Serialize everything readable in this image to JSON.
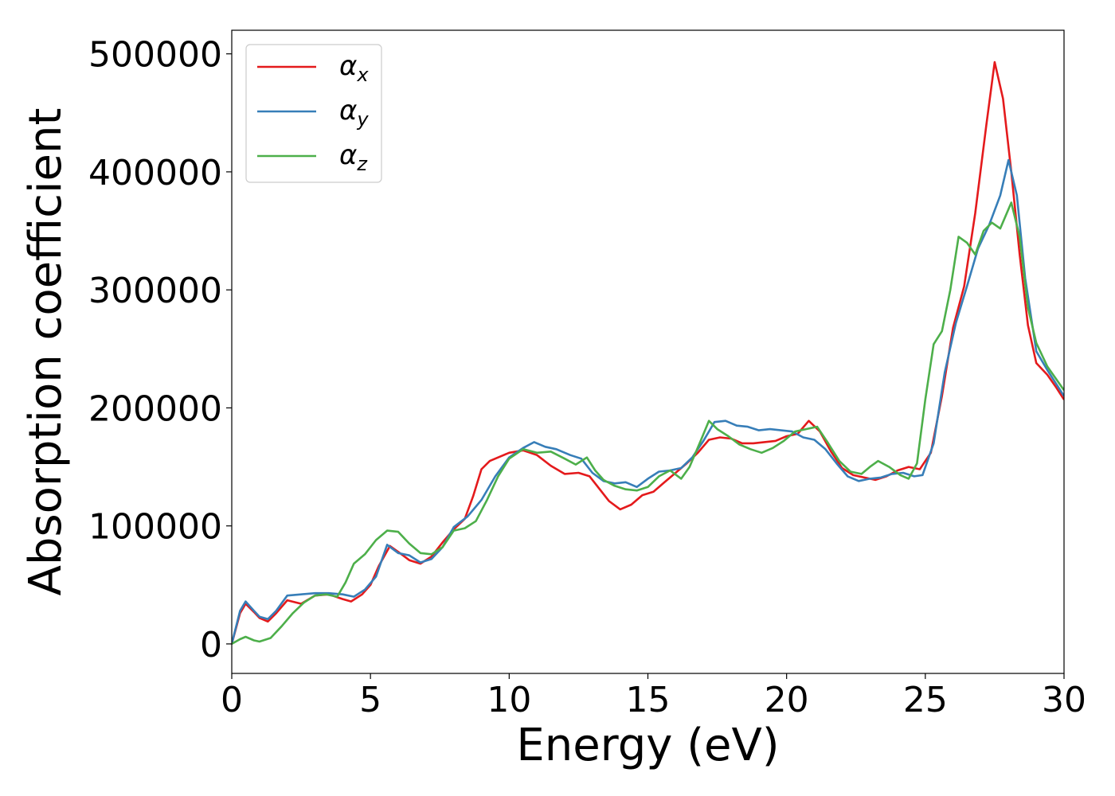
{
  "chart_data": {
    "type": "line",
    "xlabel": "Energy (eV)",
    "ylabel": "Absorption coefficient",
    "xlim": [
      0,
      30
    ],
    "ylim": [
      -25000,
      520000
    ],
    "xticks": [
      0,
      5,
      10,
      15,
      20,
      25,
      30
    ],
    "yticks": [
      0,
      100000,
      200000,
      300000,
      400000,
      500000
    ],
    "grid": false,
    "legend_position": "top-left",
    "series": [
      {
        "name": "α",
        "subscript": "x",
        "color": "#e41a1c",
        "points": [
          [
            0,
            0
          ],
          [
            0.3,
            26000
          ],
          [
            0.5,
            34000
          ],
          [
            0.8,
            27000
          ],
          [
            1.0,
            22000
          ],
          [
            1.3,
            19000
          ],
          [
            1.6,
            26000
          ],
          [
            2.0,
            37000
          ],
          [
            2.5,
            34000
          ],
          [
            3.0,
            41000
          ],
          [
            3.5,
            42000
          ],
          [
            4.0,
            38000
          ],
          [
            4.3,
            36000
          ],
          [
            4.7,
            42000
          ],
          [
            5.0,
            50000
          ],
          [
            5.3,
            66000
          ],
          [
            5.7,
            83000
          ],
          [
            6.0,
            78000
          ],
          [
            6.4,
            71000
          ],
          [
            6.8,
            68000
          ],
          [
            7.2,
            74000
          ],
          [
            7.6,
            86000
          ],
          [
            8.0,
            97000
          ],
          [
            8.4,
            106000
          ],
          [
            8.7,
            125000
          ],
          [
            9.0,
            148000
          ],
          [
            9.3,
            155000
          ],
          [
            9.7,
            159000
          ],
          [
            10.0,
            162000
          ],
          [
            10.5,
            164000
          ],
          [
            11.0,
            160000
          ],
          [
            11.5,
            151000
          ],
          [
            12.0,
            144000
          ],
          [
            12.5,
            145000
          ],
          [
            12.9,
            142000
          ],
          [
            13.2,
            133000
          ],
          [
            13.6,
            121000
          ],
          [
            14.0,
            114000
          ],
          [
            14.4,
            118000
          ],
          [
            14.8,
            126000
          ],
          [
            15.2,
            129000
          ],
          [
            15.6,
            137000
          ],
          [
            16.0,
            145000
          ],
          [
            16.4,
            153000
          ],
          [
            16.8,
            162000
          ],
          [
            17.2,
            173000
          ],
          [
            17.6,
            175000
          ],
          [
            18.0,
            174000
          ],
          [
            18.4,
            170000
          ],
          [
            18.8,
            170000
          ],
          [
            19.2,
            171000
          ],
          [
            19.6,
            172000
          ],
          [
            20.0,
            176000
          ],
          [
            20.4,
            178000
          ],
          [
            20.8,
            189000
          ],
          [
            21.2,
            180000
          ],
          [
            21.6,
            163000
          ],
          [
            22.0,
            149000
          ],
          [
            22.4,
            143000
          ],
          [
            22.8,
            141000
          ],
          [
            23.2,
            139000
          ],
          [
            23.6,
            142000
          ],
          [
            24.0,
            147000
          ],
          [
            24.4,
            150000
          ],
          [
            24.8,
            148000
          ],
          [
            25.2,
            162000
          ],
          [
            25.6,
            210000
          ],
          [
            26.0,
            268000
          ],
          [
            26.4,
            303000
          ],
          [
            26.8,
            365000
          ],
          [
            27.2,
            440000
          ],
          [
            27.5,
            493000
          ],
          [
            27.8,
            462000
          ],
          [
            28.1,
            400000
          ],
          [
            28.4,
            330000
          ],
          [
            28.7,
            270000
          ],
          [
            29.0,
            238000
          ],
          [
            29.4,
            228000
          ],
          [
            29.7,
            218000
          ],
          [
            30.0,
            207000
          ]
        ]
      },
      {
        "name": "α",
        "subscript": "y",
        "color": "#377eb8",
        "points": [
          [
            0,
            0
          ],
          [
            0.3,
            28000
          ],
          [
            0.5,
            36000
          ],
          [
            0.8,
            28000
          ],
          [
            1.0,
            23000
          ],
          [
            1.3,
            21000
          ],
          [
            1.6,
            28000
          ],
          [
            2.0,
            41000
          ],
          [
            2.5,
            42000
          ],
          [
            3.0,
            43000
          ],
          [
            3.5,
            43000
          ],
          [
            4.0,
            42000
          ],
          [
            4.4,
            40000
          ],
          [
            4.8,
            46000
          ],
          [
            5.2,
            57000
          ],
          [
            5.6,
            84000
          ],
          [
            6.0,
            77000
          ],
          [
            6.4,
            75000
          ],
          [
            6.8,
            69000
          ],
          [
            7.2,
            72000
          ],
          [
            7.6,
            82000
          ],
          [
            8.0,
            99000
          ],
          [
            8.5,
            108000
          ],
          [
            9.0,
            122000
          ],
          [
            9.5,
            142000
          ],
          [
            10.0,
            158000
          ],
          [
            10.5,
            166000
          ],
          [
            10.9,
            171000
          ],
          [
            11.3,
            167000
          ],
          [
            11.7,
            165000
          ],
          [
            12.2,
            160000
          ],
          [
            12.6,
            157000
          ],
          [
            13.0,
            145000
          ],
          [
            13.4,
            138000
          ],
          [
            13.8,
            136000
          ],
          [
            14.2,
            137000
          ],
          [
            14.6,
            133000
          ],
          [
            15.0,
            140000
          ],
          [
            15.4,
            146000
          ],
          [
            15.8,
            147000
          ],
          [
            16.2,
            149000
          ],
          [
            16.6,
            158000
          ],
          [
            17.0,
            172000
          ],
          [
            17.4,
            188000
          ],
          [
            17.8,
            189000
          ],
          [
            18.2,
            185000
          ],
          [
            18.6,
            184000
          ],
          [
            19.0,
            181000
          ],
          [
            19.4,
            182000
          ],
          [
            19.8,
            181000
          ],
          [
            20.2,
            180000
          ],
          [
            20.6,
            175000
          ],
          [
            21.0,
            173000
          ],
          [
            21.4,
            165000
          ],
          [
            21.8,
            153000
          ],
          [
            22.2,
            142000
          ],
          [
            22.6,
            138000
          ],
          [
            23.0,
            140000
          ],
          [
            23.4,
            141000
          ],
          [
            23.8,
            144000
          ],
          [
            24.2,
            145000
          ],
          [
            24.6,
            142000
          ],
          [
            24.9,
            143000
          ],
          [
            25.3,
            170000
          ],
          [
            25.7,
            230000
          ],
          [
            26.1,
            272000
          ],
          [
            26.5,
            303000
          ],
          [
            26.9,
            335000
          ],
          [
            27.3,
            355000
          ],
          [
            27.7,
            380000
          ],
          [
            28.0,
            410000
          ],
          [
            28.3,
            380000
          ],
          [
            28.6,
            310000
          ],
          [
            29.0,
            248000
          ],
          [
            29.4,
            232000
          ],
          [
            30.0,
            210000
          ]
        ]
      },
      {
        "name": "α",
        "subscript": "z",
        "color": "#4daf4a",
        "points": [
          [
            0,
            0
          ],
          [
            0.3,
            4000
          ],
          [
            0.5,
            6000
          ],
          [
            0.8,
            3000
          ],
          [
            1.0,
            2000
          ],
          [
            1.4,
            5000
          ],
          [
            1.8,
            15000
          ],
          [
            2.2,
            26000
          ],
          [
            2.6,
            35000
          ],
          [
            3.0,
            41000
          ],
          [
            3.4,
            42000
          ],
          [
            3.8,
            40000
          ],
          [
            4.1,
            52000
          ],
          [
            4.4,
            68000
          ],
          [
            4.8,
            76000
          ],
          [
            5.2,
            88000
          ],
          [
            5.6,
            96000
          ],
          [
            6.0,
            95000
          ],
          [
            6.4,
            85000
          ],
          [
            6.8,
            77000
          ],
          [
            7.2,
            76000
          ],
          [
            7.6,
            82000
          ],
          [
            8.0,
            96000
          ],
          [
            8.4,
            98000
          ],
          [
            8.8,
            104000
          ],
          [
            9.2,
            122000
          ],
          [
            9.6,
            142000
          ],
          [
            10.0,
            157000
          ],
          [
            10.5,
            165000
          ],
          [
            11.0,
            162000
          ],
          [
            11.5,
            163000
          ],
          [
            12.0,
            157000
          ],
          [
            12.4,
            152000
          ],
          [
            12.8,
            158000
          ],
          [
            13.1,
            147000
          ],
          [
            13.4,
            139000
          ],
          [
            13.8,
            134000
          ],
          [
            14.2,
            131000
          ],
          [
            14.6,
            130000
          ],
          [
            15.0,
            133000
          ],
          [
            15.4,
            142000
          ],
          [
            15.8,
            147000
          ],
          [
            16.2,
            140000
          ],
          [
            16.5,
            150000
          ],
          [
            16.9,
            172000
          ],
          [
            17.2,
            189000
          ],
          [
            17.5,
            182000
          ],
          [
            17.9,
            176000
          ],
          [
            18.3,
            169000
          ],
          [
            18.7,
            165000
          ],
          [
            19.1,
            162000
          ],
          [
            19.5,
            166000
          ],
          [
            19.9,
            172000
          ],
          [
            20.3,
            180000
          ],
          [
            20.7,
            182000
          ],
          [
            21.1,
            184000
          ],
          [
            21.5,
            170000
          ],
          [
            21.9,
            155000
          ],
          [
            22.3,
            146000
          ],
          [
            22.7,
            144000
          ],
          [
            23.0,
            150000
          ],
          [
            23.3,
            155000
          ],
          [
            23.7,
            150000
          ],
          [
            24.1,
            143000
          ],
          [
            24.4,
            140000
          ],
          [
            24.7,
            153000
          ],
          [
            25.0,
            207000
          ],
          [
            25.3,
            254000
          ],
          [
            25.6,
            265000
          ],
          [
            25.9,
            300000
          ],
          [
            26.2,
            345000
          ],
          [
            26.5,
            340000
          ],
          [
            26.8,
            330000
          ],
          [
            27.1,
            350000
          ],
          [
            27.4,
            357000
          ],
          [
            27.7,
            352000
          ],
          [
            28.1,
            374000
          ],
          [
            28.4,
            345000
          ],
          [
            28.7,
            285000
          ],
          [
            29.0,
            255000
          ],
          [
            29.4,
            235000
          ],
          [
            30.0,
            215000
          ]
        ]
      }
    ]
  }
}
